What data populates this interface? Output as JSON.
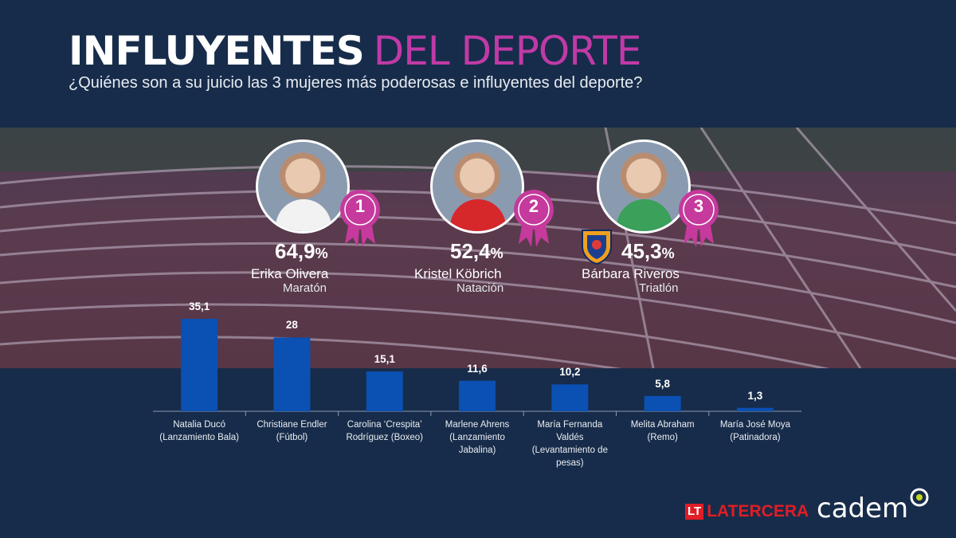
{
  "header": {
    "title_bold": "INFLUYENTES",
    "title_light": "DEL DEPORTE",
    "subtitle": "¿Quiénes son a su juicio las 3 mujeres más poderosas e influyentes del deporte?"
  },
  "top3": [
    {
      "rank": "1",
      "percent": "64,9",
      "unit": "%",
      "name": "Erika Olivera",
      "sport": "Maratón"
    },
    {
      "rank": "2",
      "percent": "52,4",
      "unit": "%",
      "name": "Kristel Köbrich",
      "sport": "Natación"
    },
    {
      "rank": "3",
      "percent": "45,3",
      "unit": "%",
      "name": "Bárbara Riveros",
      "sport": "Triatlón"
    }
  ],
  "chart_data": {
    "type": "bar",
    "categories": [
      [
        "Natalia Ducó",
        "(Lanzamiento Bala)"
      ],
      [
        "Christiane Endler",
        "(Fútbol)"
      ],
      [
        "Carolina ‘Crespita’",
        "Rodríguez (Boxeo)"
      ],
      [
        "Marlene Ahrens",
        "(Lanzamiento",
        "Jabalina)"
      ],
      [
        "María Fernanda",
        "Valdés",
        "(Levantamiento de",
        "pesas)"
      ],
      [
        "Melita Abraham",
        "(Remo)"
      ],
      [
        "María José Moya",
        "(Patinadora)"
      ]
    ],
    "values": [
      35.1,
      28,
      15.1,
      11.6,
      10.2,
      5.8,
      1.3
    ],
    "value_labels": [
      "35,1",
      "28",
      "15,1",
      "11,6",
      "10,2",
      "5,8",
      "1,3"
    ],
    "bar_color": "#0b50b3"
  },
  "footer": {
    "lt_badge": "LT",
    "lt_name": "LATERCERA",
    "cadem": "cadem"
  },
  "colors": {
    "background": "#172c4a",
    "accent": "#c03aa6",
    "badge": "#c53a9c"
  }
}
